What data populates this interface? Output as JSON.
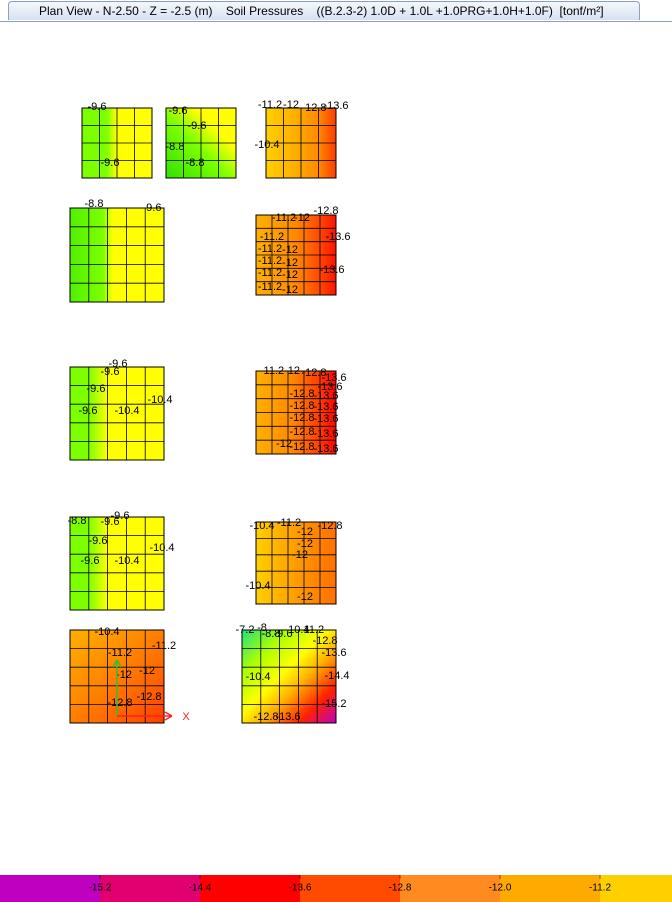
{
  "title": "Plan View - N-2.50 - Z = -2.5 (m)    Soil Pressures    ((B.2.3-2) 1.0D + 1.0L +1.0PRG+1.0H+1.0F)  [tonf/m²]",
  "footings": [
    {
      "labels": [
        "-9.6",
        "-9.6"
      ]
    },
    {
      "labels": [
        "-9.6",
        "-9.6",
        "-8.8",
        "-8.8"
      ]
    },
    {
      "labels": [
        "-11.2",
        "-12",
        "-12.8",
        "-13.6",
        "-10.4"
      ]
    },
    {
      "labels": [
        "-8.8",
        "-9.6"
      ]
    },
    {
      "labels": [
        "-11.2",
        "-12",
        "-12.8",
        "-13.6",
        "-11.2",
        "-11.2",
        "-12",
        "-11.2",
        "-12",
        "-11.2",
        "-12",
        "-13.6",
        "-11.2",
        "-12"
      ]
    },
    {
      "labels": [
        "-9.6",
        "-9.6",
        "-9.6",
        "-10.4",
        "-9.6",
        "-10.4"
      ]
    },
    {
      "labels": [
        "-11.2",
        "-12",
        "-12.8",
        "-13.6",
        "-13.6",
        "-12.8",
        "-13.6",
        "-12.8",
        "-13.6",
        "-12.8",
        "-13.6",
        "-12.8",
        "-13.6",
        "-12",
        "-12.8",
        "-13.6"
      ]
    },
    {
      "labels": [
        "-8.8",
        "-9.6",
        "-9.6",
        "-9.6",
        "-10.4",
        "-9.6",
        "-10.4"
      ]
    },
    {
      "labels": [
        "-10.4",
        "-11.2",
        "-12.8",
        "-12",
        "-12",
        "-12",
        "-10.4",
        "-12"
      ]
    },
    {
      "labels": [
        "-10.4",
        "-11.2",
        "-11.2",
        "-12",
        "-12",
        "-12.8",
        "-12.8"
      ]
    },
    {
      "labels": [
        "-7.2",
        "-8",
        "-8.8",
        "-9.6",
        "-10.4",
        "-11.2",
        "-12.8",
        "-13.6",
        "-10.4",
        "-14.4",
        "-15.2",
        "-12.8",
        "-13.6"
      ]
    }
  ],
  "axis_label": "X",
  "legend": {
    "ticks": [
      -15.2,
      -14.4,
      -13.6,
      -12.8,
      {
        "value": -12,
        "label": "-12.0"
      },
      -11.2
    ]
  }
}
